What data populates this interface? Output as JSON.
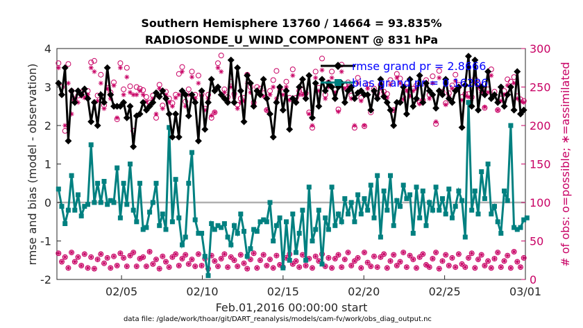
{
  "chart_data": {
    "type": "line",
    "title_line1": "Southern Hemisphere 13760 / 14664 = 93.835%",
    "title_line2": "RADIOSONDE_U_WIND_COMPONENT @ 831 hPa",
    "ylabel": "rmse and bias (model - observation)",
    "ylabel_right": "# of obs: o=possible; ∗=assimilated",
    "xlabel": "Feb.01,2016 00:00:00 start",
    "footer": "data file: /glade/work/thoar/git/DART_reanalysis/models/cam-fv/work/obs_diag_output.nc",
    "ylim": [
      -2,
      4
    ],
    "ylim_right": [
      0,
      300
    ],
    "xlim": [
      0,
      29
    ],
    "yticks": [
      "-2",
      "-1",
      "0",
      "1",
      "2",
      "3",
      "4"
    ],
    "yticks_right": [
      "0",
      "50",
      "100",
      "150",
      "200",
      "250",
      "300"
    ],
    "xticks": [
      {
        "day": 4,
        "label": "02/05"
      },
      {
        "day": 9,
        "label": "02/10"
      },
      {
        "day": 14,
        "label": "02/15"
      },
      {
        "day": 19,
        "label": "02/20"
      },
      {
        "day": 24,
        "label": "02/25"
      },
      {
        "day": 29,
        "label": "03/01"
      }
    ],
    "grid": false,
    "legend_position": "top-right",
    "colors": {
      "rmse": "#000000",
      "bias": "#008080",
      "obs": "#c80064",
      "zero_line": "#b0b0b0",
      "legend_text": "#0000ff"
    },
    "series": [
      {
        "name": "rmse grand pr = 2.8666",
        "values": [
          3.1,
          2.8,
          3.5,
          1.6,
          2.9,
          2.6,
          2.9,
          2.8,
          2.95,
          2.7,
          2.1,
          2.6,
          2.0,
          2.8,
          2.6,
          3.5,
          2.8,
          2.5,
          2.5,
          2.5,
          2.6,
          2.2,
          2.5,
          1.45,
          2.25,
          2.3,
          2.6,
          2.4,
          2.5,
          2.6,
          2.85,
          2.75,
          2.9,
          2.7,
          2.3,
          1.7,
          2.3,
          1.7,
          2.9,
          2.8,
          2.25,
          2.8,
          2.6,
          1.6,
          2.9,
          1.9,
          2.6,
          3.2,
          2.9,
          3.0,
          2.8,
          2.7,
          2.6,
          3.7,
          2.6,
          3.5,
          2.9,
          2.1,
          3.3,
          3.1,
          2.5,
          2.9,
          2.8,
          3.2,
          2.7,
          2.3,
          1.7,
          2.6,
          3.0,
          2.4,
          2.9,
          1.9,
          2.7,
          2.6,
          3.0,
          3.2,
          2.7,
          3.3,
          2.2,
          3.1,
          2.5,
          3.2,
          2.9,
          3.1,
          3.0,
          2.7,
          3.0,
          3.1,
          2.6,
          2.9,
          3.0,
          2.7,
          2.85,
          2.9,
          2.8,
          2.8,
          2.4,
          2.9,
          2.7,
          3.2,
          2.75,
          2.6,
          2.4,
          2.0,
          2.6,
          2.6,
          3.0,
          2.3,
          3.2,
          2.5,
          2.7,
          3.3,
          2.6,
          3.1,
          2.9,
          2.8,
          2.45,
          2.9,
          2.8,
          3.2,
          2.7,
          2.6,
          2.9,
          3.0,
          1.95,
          3.05,
          3.8,
          2.5,
          3.7,
          2.4,
          3.0,
          2.8,
          3.4,
          2.7,
          2.8,
          2.6,
          3.0,
          2.5,
          2.8,
          3.0,
          2.4,
          3.4,
          2.3,
          2.4
        ]
      },
      {
        "name": "bias grand pr = 0.16286",
        "values": [
          0.35,
          -0.1,
          -0.55,
          -0.2,
          0.7,
          -0.2,
          0.2,
          -0.35,
          -0.1,
          -0.05,
          1.5,
          0.0,
          0.5,
          0.0,
          0.55,
          -0.05,
          0.05,
          0.0,
          0.9,
          -0.4,
          0.5,
          -0.05,
          1.0,
          -0.2,
          -0.5,
          0.5,
          -0.7,
          -0.65,
          -0.25,
          0.0,
          0.5,
          -0.6,
          -0.3,
          -0.7,
          1.95,
          -0.5,
          0.6,
          -0.4,
          -1.1,
          -0.9,
          0.5,
          1.3,
          -0.45,
          -0.8,
          -0.8,
          -1.4,
          -1.9,
          -0.55,
          -0.7,
          -0.6,
          -0.65,
          -0.55,
          -0.9,
          -1.1,
          -0.6,
          -0.8,
          -0.3,
          -0.75,
          -1.4,
          -1.2,
          -0.7,
          -0.75,
          -0.5,
          -0.45,
          -0.5,
          0.0,
          -1.0,
          -0.6,
          -0.4,
          -1.7,
          -0.5,
          -1.5,
          -0.3,
          -1.3,
          -0.8,
          -0.2,
          -1.5,
          0.4,
          -1.0,
          -0.7,
          -0.2,
          -1.6,
          -0.4,
          -0.7,
          0.4,
          -0.6,
          -0.3,
          -0.5,
          0.1,
          -0.3,
          0.0,
          -0.5,
          0.2,
          -0.3,
          0.1,
          -0.2,
          0.45,
          -0.4,
          0.7,
          -0.9,
          0.3,
          -0.2,
          0.7,
          -0.6,
          0.05,
          -0.1,
          0.45,
          0.1,
          0.2,
          -0.8,
          0.4,
          -0.4,
          0.3,
          -0.6,
          0.0,
          -0.2,
          0.4,
          -0.2,
          0.1,
          -0.3,
          0.35,
          -0.4,
          -0.1,
          0.3,
          0.05,
          -0.9,
          2.6,
          -0.2,
          0.3,
          -0.3,
          0.8,
          0.1,
          1.0,
          -0.3,
          -0.1,
          -0.5,
          -0.8,
          0.3,
          0.05,
          2.0,
          -0.65,
          -0.7,
          -0.65,
          -0.45,
          -0.4
        ]
      },
      {
        "name": "possible",
        "values": [
          281,
          250,
          193,
          280,
          245,
          233,
          239,
          243,
          241,
          245,
          282,
          284,
          239,
          266,
          226,
          249,
          243,
          256,
          208,
          281,
          247,
          275,
          251,
          193,
          250,
          248,
          246,
          237,
          230,
          239,
          210,
          253,
          226,
          244,
          235,
          229,
          240,
          267,
          276,
          231,
          247,
          270,
          240,
          265,
          241,
          222,
          240,
          210,
          217,
          281,
          291,
          247,
          237,
          257,
          241,
          227,
          235,
          236,
          266,
          250,
          230,
          250,
          248,
          242,
          220,
          245,
          259,
          271,
          249,
          244,
          257,
          236,
          273,
          236,
          245,
          246,
          242,
          217,
          197,
          270,
          249,
          287,
          240,
          256,
          270,
          247,
          221,
          279,
          253,
          256,
          239,
          197,
          262,
          236,
          199,
          253,
          217,
          248,
          242,
          253,
          244,
          241,
          259,
          220,
          267,
          261,
          237,
          250,
          243,
          248,
          252,
          230,
          233,
          259,
          240,
          264,
          202,
          271,
          244,
          229,
          242,
          252,
          266,
          253,
          237,
          241,
          241,
          237,
          261,
          255,
          247,
          223,
          247,
          273,
          244,
          220,
          235,
          245,
          260,
          257,
          263,
          238,
          234,
          232
        ]
      },
      {
        "name": "assimilated",
        "values": [
          275,
          240,
          200,
          255,
          215,
          235,
          230,
          238,
          236,
          240,
          275,
          270,
          232,
          255,
          222,
          248,
          235,
          252,
          210,
          275,
          240,
          263,
          243,
          240,
          240,
          245,
          240,
          231,
          227,
          235,
          215,
          248,
          222,
          240,
          230,
          225,
          236,
          240,
          270,
          225,
          240,
          263,
          235,
          255,
          238,
          220,
          235,
          213,
          217,
          275,
          270,
          243,
          232,
          250,
          237,
          222,
          230,
          232,
          255,
          243,
          227,
          245,
          243,
          238,
          220,
          240,
          250,
          235,
          245,
          240,
          250,
          233,
          265,
          232,
          240,
          240,
          240,
          215,
          200,
          262,
          245,
          272,
          235,
          250,
          262,
          243,
          218,
          270,
          248,
          250,
          235,
          200,
          255,
          232,
          200,
          248,
          220,
          243,
          238,
          248,
          240,
          236,
          253,
          220,
          262,
          255,
          234,
          245,
          238,
          245,
          248,
          228,
          232,
          252,
          235,
          255,
          205,
          262,
          240,
          227,
          238,
          248,
          258,
          248,
          233,
          238,
          237,
          235,
          255,
          250,
          243,
          224,
          243,
          265,
          240,
          220,
          232,
          240,
          252,
          250,
          255,
          235,
          231,
          230
        ]
      },
      {
        "name": "possible-low",
        "values": [
          34,
          23,
          29,
          15,
          35,
          23,
          29,
          18,
          33,
          15,
          29,
          14,
          26,
          33,
          21,
          28,
          15,
          30,
          18,
          34,
          28,
          17,
          31,
          35,
          17,
          27,
          29,
          17,
          36,
          20,
          26,
          14,
          30,
          23,
          16,
          29,
          33,
          18,
          27,
          32,
          20,
          26,
          17,
          33,
          18,
          27,
          14,
          31,
          24,
          17,
          27,
          33,
          16,
          29,
          25,
          17,
          32,
          21,
          14,
          26,
          34,
          15,
          25,
          32,
          18,
          26,
          15,
          31,
          19,
          16,
          28,
          33,
          20,
          24,
          16,
          32,
          18,
          27,
          15,
          30,
          24,
          33,
          17,
          28,
          15,
          27,
          32,
          16,
          26,
          35,
          18,
          24,
          28,
          15,
          35,
          22,
          17,
          30,
          16,
          29,
          33,
          15,
          24,
          32,
          18,
          23,
          35,
          16,
          31,
          26,
          15,
          29,
          33,
          19,
          16,
          27,
          35,
          14,
          24,
          32,
          18,
          28,
          16,
          33,
          20,
          16,
          28,
          34,
          15,
          26,
          32,
          18,
          24,
          15,
          27,
          35,
          16,
          24,
          31,
          15,
          36,
          23,
          16,
          28
        ]
      },
      {
        "name": "assimilated-low",
        "values": [
          34,
          23,
          29,
          15,
          35,
          23,
          29,
          18,
          33,
          15,
          29,
          14,
          26,
          33,
          21,
          28,
          15,
          30,
          18,
          34,
          28,
          17,
          31,
          35,
          17,
          27,
          29,
          17,
          36,
          20,
          26,
          14,
          30,
          23,
          16,
          29,
          33,
          18,
          27,
          32,
          20,
          26,
          17,
          33,
          18,
          27,
          14,
          31,
          24,
          17,
          27,
          33,
          16,
          29,
          25,
          17,
          32,
          21,
          14,
          26,
          34,
          15,
          25,
          32,
          18,
          26,
          15,
          31,
          19,
          16,
          28,
          33,
          20,
          24,
          16,
          32,
          18,
          27,
          15,
          30,
          24,
          33,
          17,
          28,
          15,
          27,
          32,
          16,
          26,
          35,
          18,
          24,
          28,
          15,
          35,
          22,
          17,
          30,
          16,
          29,
          33,
          15,
          24,
          32,
          18,
          23,
          35,
          16,
          31,
          26,
          15,
          29,
          33,
          19,
          16,
          27,
          35,
          14,
          24,
          32,
          18,
          28,
          16,
          33,
          20,
          16,
          28,
          34,
          15,
          26,
          32,
          18,
          24,
          15,
          27,
          35,
          16,
          24,
          31,
          15,
          36,
          23,
          16,
          28
        ]
      }
    ]
  }
}
